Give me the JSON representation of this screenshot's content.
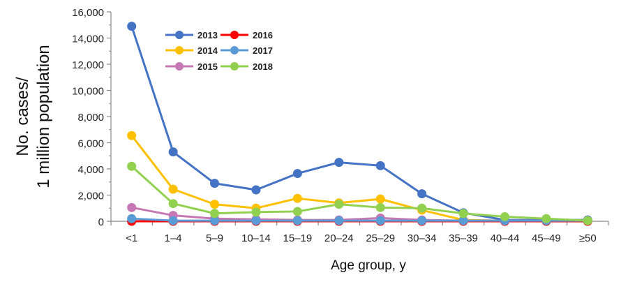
{
  "chart_data": {
    "type": "line",
    "title": "",
    "xlabel": "Age group, y",
    "ylabel_line1": "No. cases/",
    "ylabel_line2": "1 million population",
    "ylim": [
      0,
      16000
    ],
    "y_ticks": [
      0,
      2000,
      4000,
      6000,
      8000,
      10000,
      12000,
      14000,
      16000
    ],
    "y_tick_labels": [
      "0",
      "2,000",
      "4,000",
      "6,000",
      "8,000",
      "10,000",
      "12,000",
      "14,000",
      "16,000"
    ],
    "categories": [
      "<1",
      "1–4",
      "5–9",
      "10–14",
      "15–19",
      "20–24",
      "25–29",
      "30–34",
      "35–39",
      "40–44",
      "45–49",
      "≥50"
    ],
    "legend_position": "top-left",
    "series": [
      {
        "name": "2013",
        "color": "#4472C4",
        "values": [
          14900,
          5300,
          2900,
          2400,
          3650,
          4500,
          4250,
          2100,
          650,
          100,
          100,
          100
        ]
      },
      {
        "name": "2014",
        "color": "#FFC000",
        "values": [
          6550,
          2450,
          1300,
          1000,
          1750,
          1400,
          1700,
          850,
          100,
          50,
          50,
          50
        ]
      },
      {
        "name": "2015",
        "color": "#C678B5",
        "values": [
          1050,
          450,
          200,
          150,
          100,
          100,
          250,
          100,
          50,
          50,
          50,
          50
        ]
      },
      {
        "name": "2016",
        "color": "#FF0000",
        "values": [
          0,
          0,
          0,
          0,
          0,
          0,
          0,
          0,
          0,
          0,
          0,
          0
        ]
      },
      {
        "name": "2017",
        "color": "#5B9BD5",
        "values": [
          200,
          50,
          50,
          50,
          50,
          50,
          50,
          50,
          50,
          50,
          50,
          50
        ]
      },
      {
        "name": "2018",
        "color": "#92D050",
        "values": [
          4200,
          1350,
          600,
          700,
          750,
          1300,
          1050,
          1000,
          600,
          350,
          200,
          50
        ]
      }
    ]
  }
}
